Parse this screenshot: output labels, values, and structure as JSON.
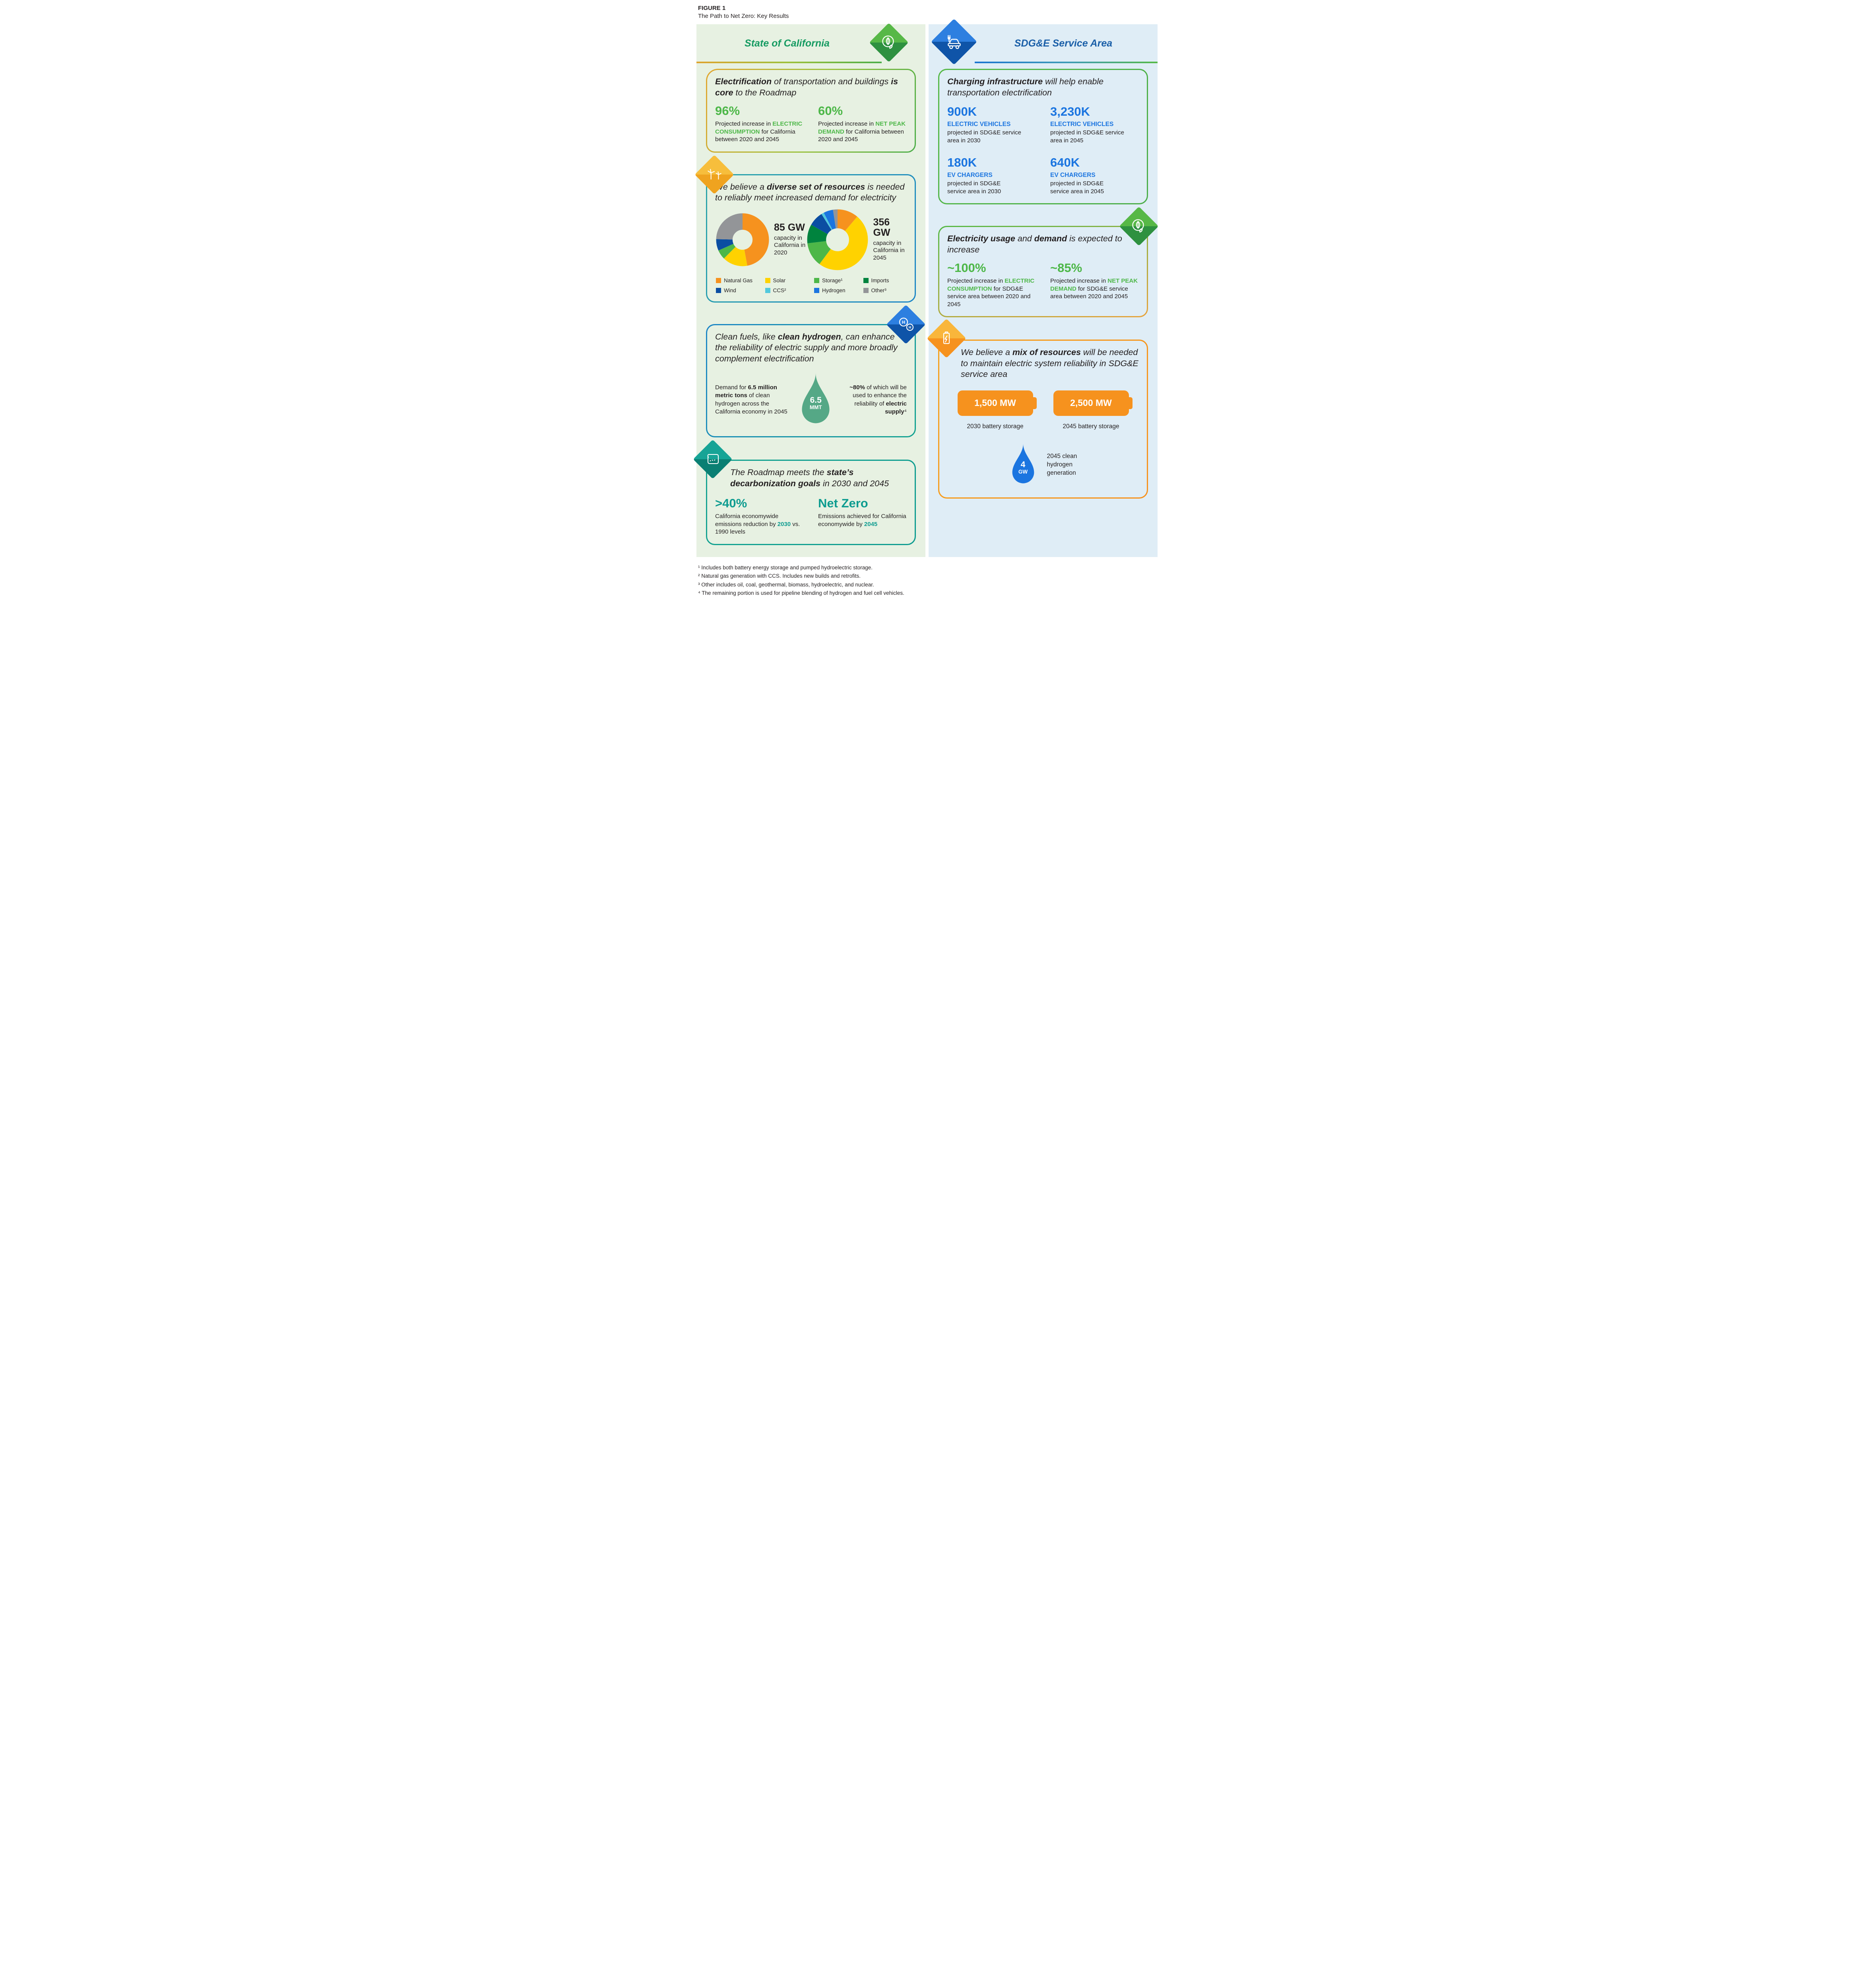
{
  "figure": {
    "label": "FIGURE 1",
    "title": "The Path to Net Zero: Key Results"
  },
  "colors": {
    "accent_green": "#4DB748",
    "accent_teal": "#0E9C90",
    "accent_blue": "#1B75E0",
    "california_title_green": "#169B62",
    "sdge_title_blue": "#1A5FA8",
    "natural_gas": "#F6921E",
    "solar": "#FFD200",
    "storage": "#4DB748",
    "imports": "#00833E",
    "wind": "#0B4EA2",
    "ccs": "#52C9DD",
    "hydrogen": "#1B75E0",
    "other": "#939598",
    "left_panel_bg": "#E7F1E2",
    "right_panel_bg": "#DFEDF6",
    "hydrogen_droplet_teal": "#55A886",
    "battery_orange": "#F6921E",
    "blue_droplet": "#1B75E0"
  },
  "california": {
    "title": "State of California",
    "sections": {
      "electrification": {
        "heading": [
          {
            "t": "Electrification",
            "b": 1
          },
          {
            "t": " of transportation and buildings ",
            "b": 0
          },
          {
            "t": "is core",
            "b": 1
          },
          {
            "t": " to the Roadmap",
            "b": 0
          }
        ],
        "stats": [
          {
            "value": "96%",
            "desc": [
              {
                "t": "Projected increase in ",
                "b": 0
              },
              {
                "t": "ELECTRIC CONSUMPTION",
                "b": 1,
                "c": "green"
              },
              {
                "t": " for California between 2020 and 2045",
                "b": 0
              }
            ]
          },
          {
            "value": "60%",
            "desc": [
              {
                "t": "Projected increase in ",
                "b": 0
              },
              {
                "t": "NET PEAK DEMAND",
                "b": 1,
                "c": "green"
              },
              {
                "t": " for California between 2020 and 2045",
                "b": 0
              }
            ]
          }
        ]
      },
      "resources": {
        "heading": [
          {
            "t": "We believe a ",
            "b": 0
          },
          {
            "t": "diverse set of resources",
            "b": 1
          },
          {
            "t": " is needed to reliably meet increased demand for electricity",
            "b": 0
          }
        ],
        "legend": [
          {
            "label": "Natural Gas",
            "color": "#F6921E"
          },
          {
            "label": "Solar",
            "color": "#FFD200"
          },
          {
            "label": "Storage¹",
            "color": "#4DB748"
          },
          {
            "label": "Imports",
            "color": "#00833E"
          },
          {
            "label": "Wind",
            "color": "#0B4EA2"
          },
          {
            "label": "CCS²",
            "color": "#52C9DD"
          },
          {
            "label": "Hydrogen",
            "color": "#1B75E0"
          },
          {
            "label": "Other³",
            "color": "#939598"
          }
        ]
      },
      "clean_fuels": {
        "heading": [
          {
            "t": "Clean fuels, like ",
            "b": 0
          },
          {
            "t": "clean hydrogen",
            "b": 1
          },
          {
            "t": ", can enhance the reliability of electric supply and more broadly complement electrification",
            "b": 0
          }
        ],
        "demand_text": [
          {
            "t": "Demand for ",
            "b": 0
          },
          {
            "t": "6.5 million metric tons",
            "b": 1
          },
          {
            "t": " of clean hydrogen across the California economy in 2045",
            "b": 0
          }
        ],
        "droplet": {
          "value": "6.5",
          "unit": "MMT"
        },
        "usage_text": [
          {
            "t": "~80%",
            "b": 1
          },
          {
            "t": " of which will be used to enhance the reliability of ",
            "b": 0
          },
          {
            "t": "electric supply",
            "b": 1
          },
          {
            "t": "⁴",
            "b": 0
          }
        ]
      },
      "roadmap": {
        "heading": [
          {
            "t": "The Roadmap meets the ",
            "b": 0
          },
          {
            "t": "state’s decarbonization goals",
            "b": 1
          },
          {
            "t": " in 2030 and 2045",
            "b": 0
          }
        ],
        "stats": [
          {
            "value": ">40%",
            "desc": [
              {
                "t": "California economywide emissions reduction by ",
                "b": 0
              },
              {
                "t": "2030",
                "b": 1,
                "c": "teal"
              },
              {
                "t": " vs. 1990 levels",
                "b": 0
              }
            ]
          },
          {
            "value": "Net Zero",
            "desc": [
              {
                "t": "Emissions achieved for California economywide by ",
                "b": 0
              },
              {
                "t": "2045",
                "b": 1,
                "c": "teal"
              }
            ]
          }
        ]
      }
    }
  },
  "sdge": {
    "title": "SDG&E Service Area",
    "sections": {
      "charging": {
        "heading": [
          {
            "t": "Charging infrastructure",
            "b": 1
          },
          {
            "t": " will help enable transportation electrification",
            "b": 0
          }
        ],
        "stats": [
          {
            "value": "900K",
            "label": "ELECTRIC VEHICLES",
            "desc": "projected in SDG&E service area in 2030"
          },
          {
            "value": "3,230K",
            "label": "ELECTRIC VEHICLES",
            "desc": "projected in SDG&E service area in 2045"
          },
          {
            "value": "180K",
            "label": "EV CHARGERS",
            "desc": "projected in SDG&E service area in 2030"
          },
          {
            "value": "640K",
            "label": "EV CHARGERS",
            "desc": "projected in SDG&E service area in 2045"
          }
        ]
      },
      "usage": {
        "heading": [
          {
            "t": "Electricity usage",
            "b": 1
          },
          {
            "t": " and ",
            "b": 0
          },
          {
            "t": "demand",
            "b": 1
          },
          {
            "t": " is expected to increase",
            "b": 0
          }
        ],
        "stats": [
          {
            "value": "~100%",
            "desc": [
              {
                "t": "Projected increase in ",
                "b": 0
              },
              {
                "t": "ELECTRIC CONSUMPTION",
                "b": 1,
                "c": "green"
              },
              {
                "t": " for SDG&E service area between 2020 and 2045",
                "b": 0
              }
            ]
          },
          {
            "value": "~85%",
            "desc": [
              {
                "t": "Projected increase in ",
                "b": 0
              },
              {
                "t": "NET PEAK DEMAND",
                "b": 1,
                "c": "green"
              },
              {
                "t": " for SDG&E service area between 2020 and 2045",
                "b": 0
              }
            ]
          }
        ]
      },
      "mix": {
        "heading": [
          {
            "t": "We believe a ",
            "b": 0
          },
          {
            "t": "mix of resources",
            "b": 1
          },
          {
            "t": " will be needed to maintain electric system reliability in SDG&E service area",
            "b": 0
          }
        ],
        "batteries": [
          {
            "value": "1,500 MW",
            "caption": "2030 battery storage"
          },
          {
            "value": "2,500 MW",
            "caption": "2045 battery storage"
          }
        ],
        "hydrogen": {
          "value": "4",
          "unit": "GW",
          "caption": "2045 clean hydrogen generation"
        }
      }
    }
  },
  "chart_data": [
    {
      "type": "donut",
      "label": "85 GW",
      "caption": "capacity in California in 2020",
      "title": "85 GW capacity in California in 2020",
      "unit": "GW",
      "total": 85,
      "slices": [
        {
          "name": "Natural Gas",
          "value": 40,
          "color": "#F6921E"
        },
        {
          "name": "Solar",
          "value": 13,
          "color": "#FFD200"
        },
        {
          "name": "Storage",
          "value": 5,
          "color": "#4DB748"
        },
        {
          "name": "Wind",
          "value": 6,
          "color": "#0B4EA2"
        },
        {
          "name": "Other",
          "value": 21,
          "color": "#939598"
        }
      ]
    },
    {
      "type": "donut",
      "label": "356 GW",
      "caption": "capacity in California in 2045",
      "title": "356 GW capacity in California in 2045",
      "unit": "GW",
      "total": 356,
      "slices": [
        {
          "name": "Natural Gas",
          "value": 40,
          "color": "#F6921E"
        },
        {
          "name": "Solar",
          "value": 174,
          "color": "#FFD200"
        },
        {
          "name": "Storage",
          "value": 46,
          "color": "#4DB748"
        },
        {
          "name": "Imports",
          "value": 36,
          "color": "#00833E"
        },
        {
          "name": "Wind",
          "value": 28,
          "color": "#0B4EA2"
        },
        {
          "name": "CCS",
          "value": 5,
          "color": "#52C9DD"
        },
        {
          "name": "Hydrogen",
          "value": 18,
          "color": "#1B75E0"
        },
        {
          "name": "Other",
          "value": 9,
          "color": "#939598"
        }
      ]
    }
  ],
  "footnotes": [
    "¹ Includes both battery energy storage and pumped hydroelectric storage.",
    "² Natural gas generation with CCS. Includes new builds and retrofits.",
    "³ Other includes oil, coal, geothermal, biomass, hydroelectric, and nuclear.",
    "⁴ The remaining portion is used for pipeline blending of hydrogen and fuel cell vehicles."
  ]
}
